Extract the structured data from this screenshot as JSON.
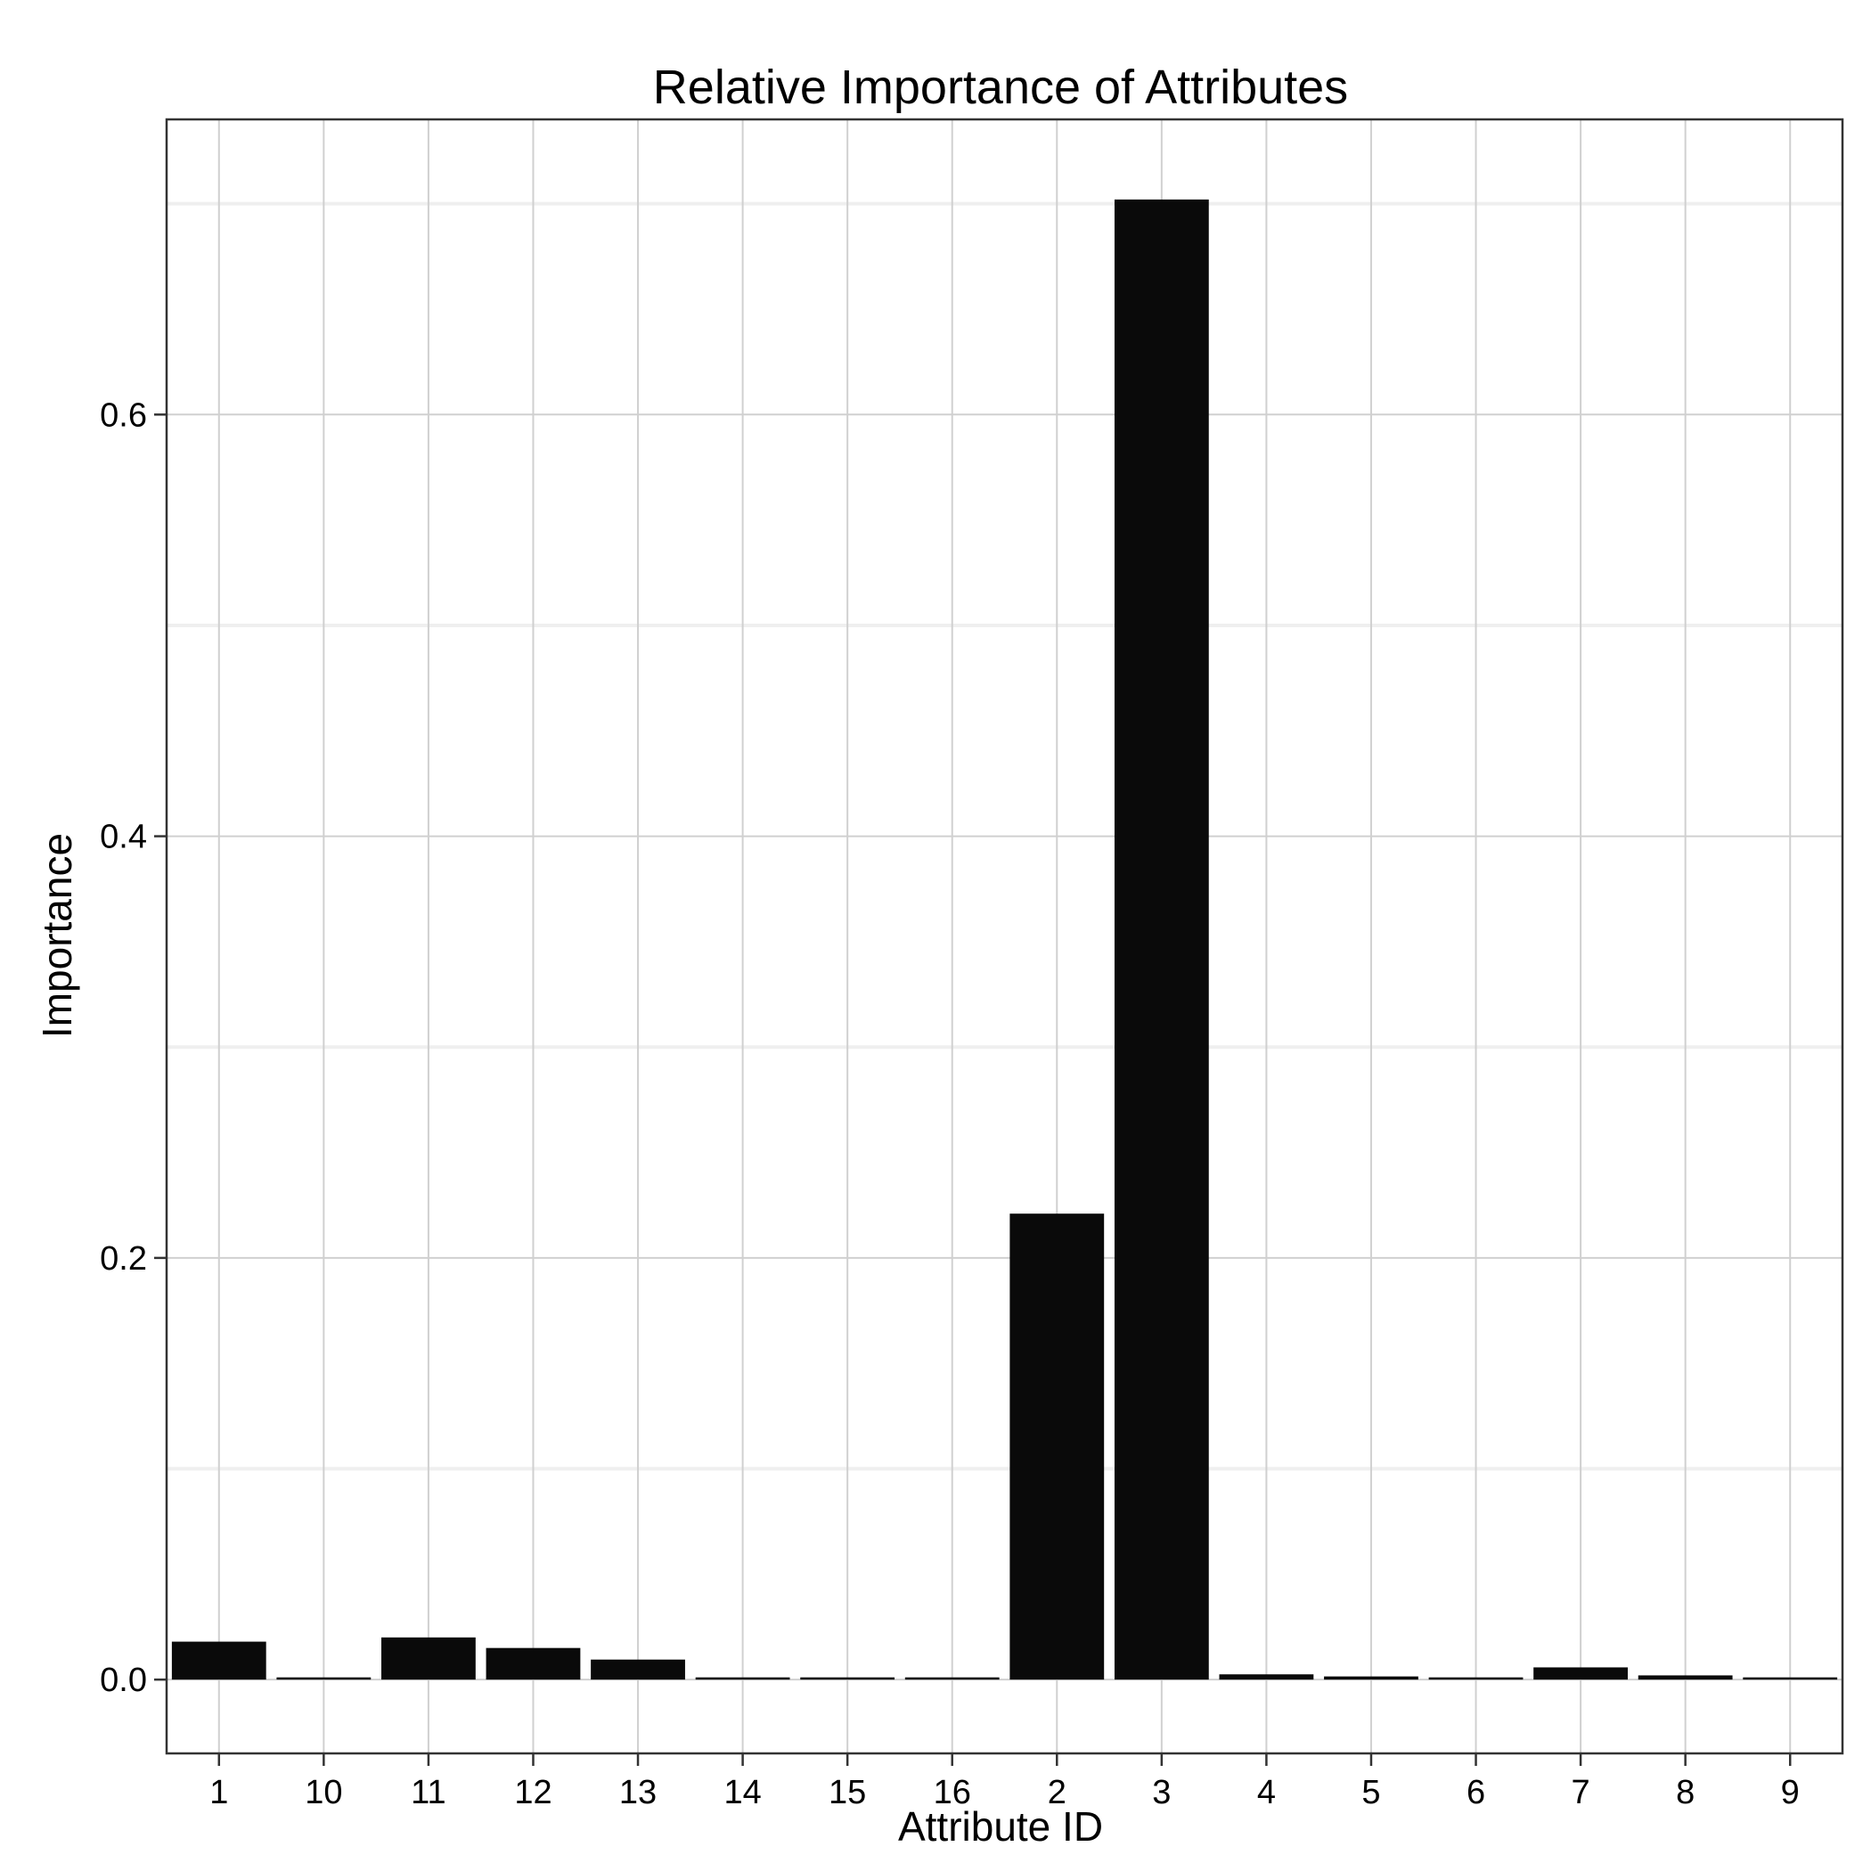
{
  "chart_data": {
    "type": "bar",
    "title": "Relative Importance of Attributes",
    "xlabel": "Attribute ID",
    "ylabel": "Importance",
    "categories": [
      "1",
      "10",
      "11",
      "12",
      "13",
      "14",
      "15",
      "16",
      "2",
      "3",
      "4",
      "5",
      "6",
      "7",
      "8",
      "9"
    ],
    "values": [
      0.018,
      0.0008,
      0.02,
      0.015,
      0.0095,
      0.001,
      0.0003,
      0.0,
      0.221,
      0.702,
      0.0025,
      0.0015,
      0.0008,
      0.0058,
      0.002,
      0.0008
    ],
    "ylim": [
      -0.035,
      0.74
    ],
    "yticks": [
      0.0,
      0.2,
      0.4,
      0.6
    ],
    "ytick_labels": [
      "0.0",
      "0.2",
      "0.4",
      "0.6"
    ],
    "minor_yticks": [
      0.1,
      0.3,
      0.5,
      0.7
    ],
    "grid": true,
    "legend": "none",
    "colors": {
      "bar": "#0a0a0a",
      "background": "#ffffff",
      "grid_major": "#d0d0d0",
      "grid_minor": "#efefef",
      "border": "#333333"
    }
  }
}
